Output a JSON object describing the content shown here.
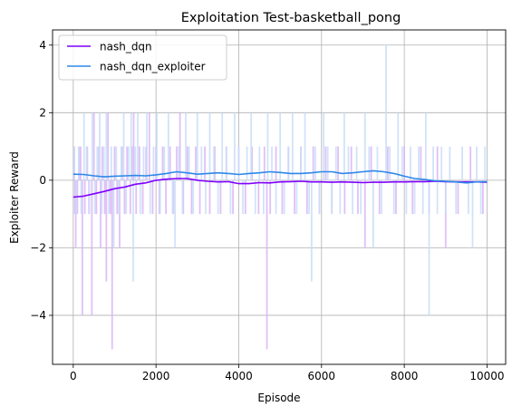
{
  "chart_data": {
    "type": "line",
    "title": "Exploitation Test-basketball_pong",
    "xlabel": "Episode",
    "ylabel": "Exploiter Reward",
    "xlim": [
      -500,
      10450
    ],
    "ylim": [
      -5.45,
      4.45
    ],
    "x_ticks": [
      0,
      2000,
      4000,
      6000,
      8000,
      10000
    ],
    "y_ticks": [
      -4,
      -2,
      0,
      2,
      4
    ],
    "x_tick_labels": [
      "0",
      "2000",
      "4000",
      "6000",
      "8000",
      "10000"
    ],
    "y_tick_labels": [
      "−4",
      "−2",
      "0",
      "2",
      "4"
    ],
    "grid": true,
    "legend_position": "top-left",
    "series": [
      {
        "name": "nash_dqn",
        "color": "#8000ff",
        "raw_color": "#dab5f7",
        "smoothed_x": [
          0,
          250,
          500,
          750,
          1000,
          1250,
          1500,
          1750,
          2000,
          2250,
          2500,
          2750,
          3000,
          3250,
          3500,
          3750,
          4000,
          4250,
          4500,
          4750,
          5000,
          5250,
          5500,
          5750,
          6000,
          6250,
          6500,
          6750,
          7000,
          7250,
          7500,
          7750,
          8000,
          8250,
          8500,
          8750,
          9000,
          9250,
          9500,
          9750,
          10000
        ],
        "smoothed_y": [
          -0.5,
          -0.47,
          -0.4,
          -0.33,
          -0.25,
          -0.2,
          -0.12,
          -0.08,
          0.0,
          0.03,
          0.05,
          0.05,
          0.0,
          -0.03,
          -0.05,
          -0.04,
          -0.1,
          -0.1,
          -0.07,
          -0.08,
          -0.05,
          -0.04,
          -0.03,
          -0.05,
          -0.05,
          -0.06,
          -0.05,
          -0.06,
          -0.07,
          -0.06,
          -0.06,
          -0.05,
          -0.05,
          -0.04,
          -0.04,
          -0.03,
          -0.04,
          -0.05,
          -0.05,
          -0.05,
          -0.06
        ],
        "raw_spikes": [
          [
            20,
            1
          ],
          [
            40,
            -1
          ],
          [
            60,
            -2
          ],
          [
            100,
            -1
          ],
          [
            140,
            1
          ],
          [
            180,
            1
          ],
          [
            220,
            -4
          ],
          [
            280,
            -1
          ],
          [
            340,
            1
          ],
          [
            380,
            -1
          ],
          [
            450,
            -4
          ],
          [
            500,
            2
          ],
          [
            560,
            -1
          ],
          [
            620,
            1
          ],
          [
            660,
            -2
          ],
          [
            700,
            1
          ],
          [
            760,
            -1
          ],
          [
            800,
            -3
          ],
          [
            840,
            2
          ],
          [
            900,
            -1
          ],
          [
            940,
            -5
          ],
          [
            1000,
            1
          ],
          [
            1060,
            -1
          ],
          [
            1120,
            -2
          ],
          [
            1180,
            1
          ],
          [
            1240,
            -1
          ],
          [
            1300,
            1
          ],
          [
            1380,
            -1
          ],
          [
            1420,
            1
          ],
          [
            1460,
            2
          ],
          [
            1520,
            -1
          ],
          [
            1600,
            1
          ],
          [
            1680,
            -1
          ],
          [
            1760,
            1
          ],
          [
            1840,
            2
          ],
          [
            1920,
            -1
          ],
          [
            2000,
            1
          ],
          [
            2080,
            -1
          ],
          [
            2160,
            1
          ],
          [
            2240,
            -1
          ],
          [
            2340,
            1
          ],
          [
            2420,
            -1
          ],
          [
            2500,
            1
          ],
          [
            2580,
            2
          ],
          [
            2660,
            -1
          ],
          [
            2760,
            1
          ],
          [
            2860,
            -1
          ],
          [
            2960,
            1
          ],
          [
            3060,
            -1
          ],
          [
            3180,
            1
          ],
          [
            3300,
            -1
          ],
          [
            3420,
            1
          ],
          [
            3560,
            -1
          ],
          [
            3700,
            1
          ],
          [
            3860,
            -1
          ],
          [
            4000,
            1
          ],
          [
            4160,
            -1
          ],
          [
            4320,
            1
          ],
          [
            4480,
            -1
          ],
          [
            4620,
            1
          ],
          [
            4680,
            -5
          ],
          [
            4760,
            -1
          ],
          [
            4900,
            1
          ],
          [
            5050,
            -1
          ],
          [
            5200,
            1
          ],
          [
            5350,
            -1
          ],
          [
            5500,
            1
          ],
          [
            5650,
            -1
          ],
          [
            5800,
            1
          ],
          [
            5950,
            -1
          ],
          [
            6100,
            1
          ],
          [
            6250,
            -1
          ],
          [
            6400,
            1
          ],
          [
            6560,
            -1
          ],
          [
            6720,
            1
          ],
          [
            6880,
            -1
          ],
          [
            7050,
            -2
          ],
          [
            7200,
            1
          ],
          [
            7400,
            -1
          ],
          [
            7600,
            1
          ],
          [
            7800,
            -1
          ],
          [
            8000,
            1
          ],
          [
            8200,
            -1
          ],
          [
            8400,
            1
          ],
          [
            8600,
            -1
          ],
          [
            8800,
            1
          ],
          [
            9000,
            -2
          ],
          [
            9300,
            -1
          ],
          [
            9600,
            1
          ],
          [
            9900,
            -1
          ]
        ]
      },
      {
        "name": "nash_dqn_exploiter",
        "color": "#2e88e8",
        "raw_color": "#c9def7",
        "smoothed_x": [
          0,
          250,
          500,
          750,
          1000,
          1250,
          1500,
          1750,
          2000,
          2250,
          2500,
          2750,
          3000,
          3250,
          3500,
          3750,
          4000,
          4250,
          4500,
          4750,
          5000,
          5250,
          5500,
          5750,
          6000,
          6250,
          6500,
          6750,
          7000,
          7250,
          7500,
          7750,
          8000,
          8250,
          8500,
          8750,
          9000,
          9250,
          9500,
          9750,
          10000
        ],
        "smoothed_y": [
          0.18,
          0.17,
          0.13,
          0.1,
          0.12,
          0.13,
          0.14,
          0.13,
          0.16,
          0.2,
          0.25,
          0.22,
          0.18,
          0.2,
          0.22,
          0.2,
          0.17,
          0.2,
          0.22,
          0.25,
          0.23,
          0.2,
          0.2,
          0.22,
          0.25,
          0.25,
          0.2,
          0.22,
          0.25,
          0.28,
          0.25,
          0.2,
          0.12,
          0.05,
          0.02,
          -0.02,
          -0.03,
          -0.05,
          -0.08,
          -0.05,
          -0.04
        ],
        "raw_spikes": [
          [
            30,
            1
          ],
          [
            70,
            -1
          ],
          [
            130,
            1
          ],
          [
            190,
            -1
          ],
          [
            260,
            2
          ],
          [
            320,
            1
          ],
          [
            390,
            -1
          ],
          [
            460,
            2
          ],
          [
            520,
            -1
          ],
          [
            580,
            1
          ],
          [
            640,
            2
          ],
          [
            690,
            -1
          ],
          [
            740,
            1
          ],
          [
            800,
            2
          ],
          [
            860,
            -1
          ],
          [
            920,
            1
          ],
          [
            980,
            -2
          ],
          [
            1040,
            1
          ],
          [
            1100,
            -1
          ],
          [
            1160,
            1
          ],
          [
            1220,
            2
          ],
          [
            1280,
            -1
          ],
          [
            1340,
            1
          ],
          [
            1400,
            2
          ],
          [
            1450,
            -3
          ],
          [
            1500,
            1
          ],
          [
            1560,
            2
          ],
          [
            1620,
            -1
          ],
          [
            1700,
            1
          ],
          [
            1780,
            2
          ],
          [
            1860,
            -1
          ],
          [
            1940,
            1
          ],
          [
            2020,
            2
          ],
          [
            2100,
            -1
          ],
          [
            2200,
            1
          ],
          [
            2300,
            2
          ],
          [
            2400,
            -1
          ],
          [
            2460,
            -2
          ],
          [
            2550,
            1
          ],
          [
            2640,
            -1
          ],
          [
            2720,
            2
          ],
          [
            2800,
            1
          ],
          [
            2900,
            -1
          ],
          [
            3000,
            2
          ],
          [
            3100,
            1
          ],
          [
            3200,
            -1
          ],
          [
            3300,
            2
          ],
          [
            3400,
            1
          ],
          [
            3500,
            -1
          ],
          [
            3600,
            2
          ],
          [
            3700,
            1
          ],
          [
            3800,
            -1
          ],
          [
            3900,
            2
          ],
          [
            4000,
            1
          ],
          [
            4100,
            -1
          ],
          [
            4200,
            1
          ],
          [
            4300,
            2
          ],
          [
            4400,
            -1
          ],
          [
            4500,
            1
          ],
          [
            4600,
            -1
          ],
          [
            4700,
            2
          ],
          [
            4800,
            1
          ],
          [
            4900,
            -1
          ],
          [
            5000,
            2
          ],
          [
            5100,
            -1
          ],
          [
            5200,
            1
          ],
          [
            5300,
            2
          ],
          [
            5400,
            -1
          ],
          [
            5500,
            1
          ],
          [
            5600,
            2
          ],
          [
            5700,
            -1
          ],
          [
            5760,
            -3
          ],
          [
            5850,
            1
          ],
          [
            5950,
            -1
          ],
          [
            6050,
            2
          ],
          [
            6150,
            1
          ],
          [
            6250,
            -1
          ],
          [
            6350,
            1
          ],
          [
            6450,
            -1
          ],
          [
            6550,
            2
          ],
          [
            6650,
            1
          ],
          [
            6750,
            -1
          ],
          [
            6850,
            1
          ],
          [
            6950,
            -1
          ],
          [
            7050,
            2
          ],
          [
            7150,
            1
          ],
          [
            7250,
            -2
          ],
          [
            7350,
            1
          ],
          [
            7450,
            -1
          ],
          [
            7560,
            4
          ],
          [
            7650,
            1
          ],
          [
            7750,
            -1
          ],
          [
            7850,
            2
          ],
          [
            7950,
            1
          ],
          [
            8050,
            -1
          ],
          [
            8150,
            1
          ],
          [
            8250,
            -1
          ],
          [
            8350,
            1
          ],
          [
            8450,
            -1
          ],
          [
            8520,
            2
          ],
          [
            8600,
            -4
          ],
          [
            8700,
            1
          ],
          [
            8800,
            -1
          ],
          [
            8900,
            1
          ],
          [
            9000,
            -1
          ],
          [
            9100,
            1
          ],
          [
            9250,
            -1
          ],
          [
            9400,
            1
          ],
          [
            9550,
            -1
          ],
          [
            9650,
            -2
          ],
          [
            9750,
            1
          ],
          [
            9850,
            -1
          ],
          [
            9950,
            1
          ]
        ]
      }
    ]
  }
}
